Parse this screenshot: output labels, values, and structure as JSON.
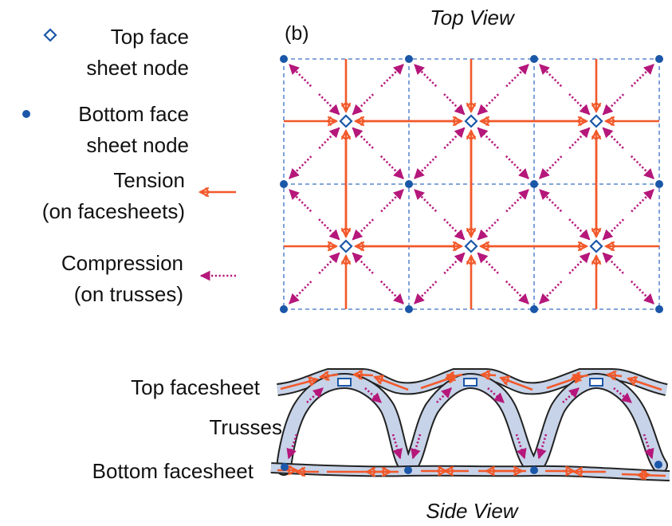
{
  "panel_label": "(b)",
  "top_view": {
    "title": "Top View",
    "grid": {
      "columns": 3,
      "rows": 2
    }
  },
  "side_view": {
    "title": "Side View",
    "labels": {
      "top_facesheet": "Top facesheet",
      "trusses": "Trusses",
      "bottom_facesheet": "Bottom facesheet"
    }
  },
  "legend": {
    "top_node": {
      "line1": "Top face",
      "line2": "sheet node",
      "icon": "diamond-outline"
    },
    "bottom_node": {
      "line1": "Bottom face",
      "line2": "sheet node",
      "icon": "filled-dot"
    },
    "tension": {
      "line1": "Tension",
      "line2": "(on facesheets)",
      "icon": "solid-double-arrow"
    },
    "compression": {
      "line1": "Compression",
      "line2": "(on trusses)",
      "icon": "dotted-arrow"
    }
  },
  "colors": {
    "tension": "#f2592a",
    "compression": "#b5177a",
    "node": "#1b57a8",
    "grid": "#3b6fc4",
    "band_fill": "#c7d3e8",
    "band_stroke": "#222222"
  }
}
